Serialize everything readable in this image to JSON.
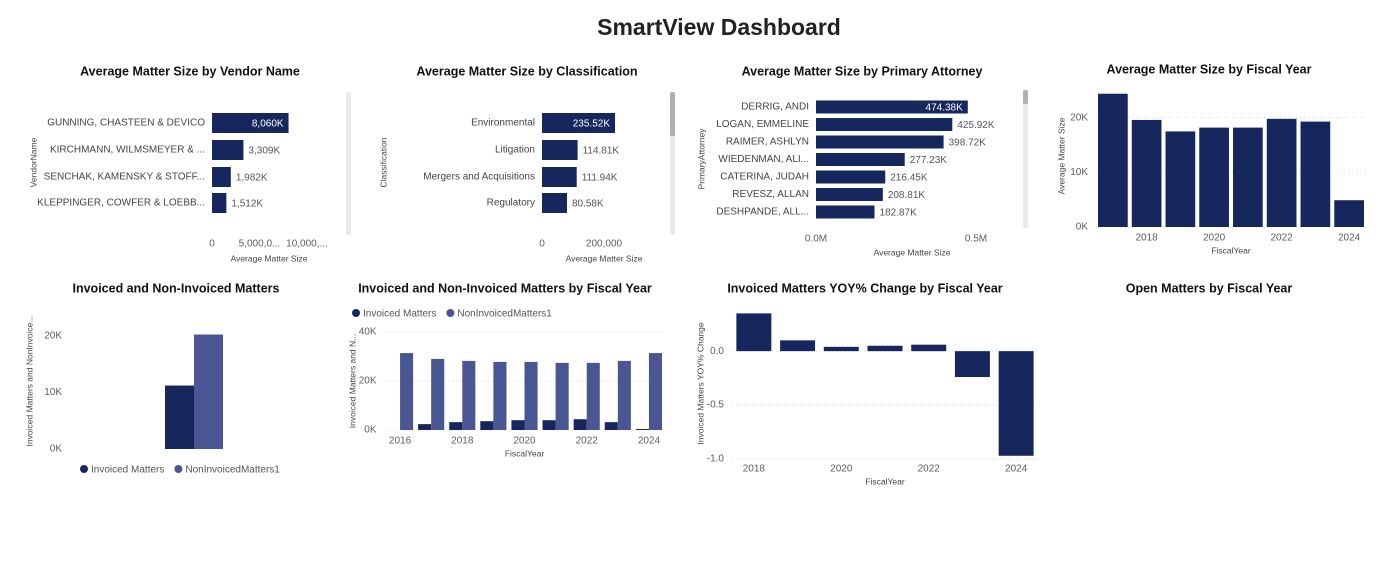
{
  "title": "SmartView Dashboard",
  "chart_data": [
    {
      "type": "hbar",
      "title": "Average Matter Size by Vendor Name",
      "ylabel": "VendorName",
      "xlabel": "Average Matter Size",
      "categories": [
        "GUNNING, CHASTEEN & DEVICO",
        "KIRCHMANN, WILMSMEYER & ...",
        "SENCHAK, KAMENSKY & STOFF...",
        "KLEPPINGER, COWFER & LOEBB..."
      ],
      "values": [
        8060000,
        3309000,
        1982000,
        1512000
      ],
      "value_labels": [
        "8,060K",
        "3,309K",
        "1,982K",
        "1,512K"
      ],
      "color": "#15275c",
      "xlim": [
        0,
        12000000
      ],
      "xticks": [
        0,
        {
          "value": 5000000,
          "label": "5,000,0..."
        },
        {
          "value": 10000000,
          "label": "10,000,..."
        }
      ],
      "grid": false
    },
    {
      "type": "hbar",
      "title": "Average Matter Size by Classification",
      "ylabel": "Classification",
      "xlabel": "Average Matter Size",
      "categories": [
        "Environmental",
        "Litigation",
        "Mergers and Acquisitions",
        "Regulatory"
      ],
      "values": [
        235520,
        114810,
        111940,
        80580
      ],
      "value_labels": [
        "235.52K",
        "114.81K",
        "111.94K",
        "80.58K"
      ],
      "color": "#15275c",
      "xlim": [
        0,
        400000
      ],
      "xticks": [
        0,
        {
          "value": 200000,
          "label": "200,000"
        }
      ],
      "grid": false
    },
    {
      "type": "hbar",
      "title": "Average Matter Size by Primary Attorney",
      "ylabel": "PrimaryAttorney",
      "xlabel": "Average Matter Size",
      "categories": [
        "DERRIG, ANDI",
        "LOGAN, EMMELINE",
        "RAIMER, ASHLYN",
        "WIEDENMAN, ALI...",
        "CATERINA, JUDAH",
        "REVESZ, ALLAN",
        "DESHPANDE, ALL..."
      ],
      "values": [
        474380,
        425920,
        398720,
        277230,
        216450,
        208810,
        182870
      ],
      "value_labels": [
        "474.38K",
        "425.92K",
        "398.72K",
        "277.23K",
        "216.45K",
        "208.81K",
        "182.87K"
      ],
      "color": "#15275c",
      "xlim": [
        0,
        600000
      ],
      "xticks": [
        {
          "value": 0,
          "label": "0.0M"
        },
        {
          "value": 500000,
          "label": "0.5M"
        }
      ],
      "grid": false
    },
    {
      "type": "bar",
      "title": "Average Matter Size by Fiscal Year",
      "ylabel": "Average Matter Size",
      "xlabel": "FiscalYear",
      "x": [
        2017,
        2018,
        2019,
        2020,
        2021,
        2022,
        2023,
        2024
      ],
      "values": [
        24400,
        19600,
        17500,
        18200,
        18200,
        19800,
        19300,
        4900
      ],
      "color": "#15275c",
      "xlim": [
        2016.5,
        2024.5
      ],
      "xticks": [
        2018,
        2020,
        2022,
        2024
      ],
      "ylim": [
        0,
        26000
      ],
      "yticks": [
        {
          "value": 0,
          "label": "0K"
        },
        {
          "value": 10000,
          "label": "10K"
        },
        {
          "value": 20000,
          "label": "20K"
        }
      ],
      "grid": true
    },
    {
      "type": "bar",
      "title": "Invoiced and Non-Invoiced Matters",
      "ylabel": "Invoiced Matters and NonInvoice...",
      "categories": [
        null
      ],
      "series": [
        {
          "name": "Invoiced Matters",
          "color": "#15275c",
          "values": [
            11200
          ]
        },
        {
          "name": "NonInvoicedMatters1",
          "color": "#4a5594",
          "values": [
            20200
          ]
        }
      ],
      "ylim": [
        0,
        24000
      ],
      "yticks": [
        {
          "value": 0,
          "label": "0K"
        },
        {
          "value": 10000,
          "label": "10K"
        },
        {
          "value": 20000,
          "label": "20K"
        }
      ],
      "grid": false,
      "legend": "bottom"
    },
    {
      "type": "bar",
      "title": "Invoiced and Non-Invoiced Matters by Fiscal Year",
      "ylabel": "Invoiced Matters and N...",
      "xlabel": "FiscalYear",
      "x": [
        2016,
        2017,
        2018,
        2019,
        2020,
        2021,
        2022,
        2023,
        2024
      ],
      "series": [
        {
          "name": "Invoiced Matters",
          "color": "#15275c",
          "values": [
            0,
            2400,
            3200,
            3600,
            4000,
            4000,
            4400,
            3200,
            400
          ]
        },
        {
          "name": "NonInvoicedMatters1",
          "color": "#4a5594",
          "values": [
            31400,
            29000,
            28200,
            27800,
            27800,
            27400,
            27400,
            28200,
            31400
          ]
        }
      ],
      "xlim": [
        2015.5,
        2024.5
      ],
      "xticks": [
        2016,
        2018,
        2020,
        2022,
        2024
      ],
      "ylim": [
        0,
        40000
      ],
      "yticks": [
        {
          "value": 0,
          "label": "0K"
        },
        {
          "value": 20000,
          "label": "20K"
        },
        {
          "value": 40000,
          "label": "40K"
        }
      ],
      "grid": true,
      "legend": "top"
    },
    {
      "type": "bar",
      "title": "Invoiced Matters YOY% Change by Fiscal Year",
      "ylabel": "Invoiced Matters YOY% Change",
      "xlabel": "FiscalYear",
      "x": [
        2018,
        2019,
        2020,
        2021,
        2022,
        2023,
        2024
      ],
      "values": [
        0.35,
        0.1,
        0.04,
        0.05,
        0.06,
        -0.24,
        -0.97
      ],
      "color": "#15275c",
      "xlim": [
        2017.5,
        2024.5
      ],
      "xticks": [
        2018,
        2020,
        2022,
        2024
      ],
      "ylim": [
        -1.0,
        0.4
      ],
      "yticks": [
        {
          "value": -1.0,
          "label": "-1.0"
        },
        {
          "value": -0.5,
          "label": "-0.5"
        },
        {
          "value": 0,
          "label": "0.0"
        }
      ],
      "grid": true
    },
    {
      "type": "blank",
      "title": "Open Matters by Fiscal Year"
    }
  ]
}
